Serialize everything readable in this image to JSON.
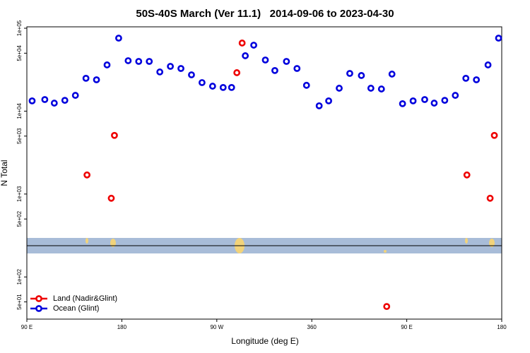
{
  "chart_data": {
    "type": "scatter",
    "title": "50S-40S March (Ver 11.1)   2014-09-06 to 2023-04-30",
    "x_label": "Longitude (deg E)",
    "y_label": "N Total",
    "xlim": [
      90,
      540
    ],
    "ylim": [
      31,
      104000
    ],
    "log_y": true,
    "legend": "bottom-left",
    "xticks": [
      {
        "value": 90,
        "label": "90 E"
      },
      180,
      {
        "value": 270,
        "label": "90 W"
      },
      360,
      {
        "value": 450,
        "label": "90 E"
      },
      {
        "value": 540,
        "label": "180"
      }
    ],
    "yticks": [
      {
        "value": 100000,
        "label": "1e+05"
      },
      {
        "value": 50000,
        "label": "5e+04"
      },
      {
        "value": 10000,
        "label": "1e+04"
      },
      {
        "value": 5000,
        "label": "5e+03"
      },
      {
        "value": 1000,
        "label": "1e+03"
      },
      {
        "value": 500,
        "label": "5e+02"
      },
      {
        "value": 100,
        "label": "1e+02"
      },
      {
        "value": 50,
        "label": "5e+01"
      }
    ],
    "series": [
      {
        "name": "Land (Nadir&Glint)",
        "color": "#ee0000",
        "x": [
          147,
          170,
          173,
          289,
          294,
          431,
          507,
          529,
          533
        ],
        "values": [
          1700,
          890,
          5100,
          29100,
          66300,
          44,
          1700,
          890,
          5100
        ]
      },
      {
        "name": "Ocean (Glint)",
        "color": "#0000dd",
        "x": [
          95,
          107,
          116,
          126,
          136,
          146,
          156,
          166,
          177,
          186,
          196,
          206,
          216,
          226,
          236,
          246,
          256,
          266,
          276,
          284,
          297,
          305,
          316,
          325,
          336,
          346,
          355,
          367,
          376,
          386,
          396,
          407,
          416,
          426,
          436,
          446,
          456,
          467,
          476,
          486,
          496,
          506,
          516,
          527,
          537
        ],
        "values": [
          13300,
          13800,
          12500,
          13500,
          15500,
          24900,
          23900,
          36100,
          76000,
          40600,
          39800,
          39800,
          29700,
          34700,
          32700,
          27400,
          22100,
          20000,
          19300,
          19300,
          46600,
          62500,
          41400,
          30900,
          39800,
          32700,
          20500,
          11600,
          13300,
          18900,
          28500,
          26900,
          18900,
          18500,
          28000,
          12300,
          13300,
          13800,
          12500,
          13500,
          15500,
          24900,
          23900,
          36100,
          76000
        ]
      }
    ]
  }
}
